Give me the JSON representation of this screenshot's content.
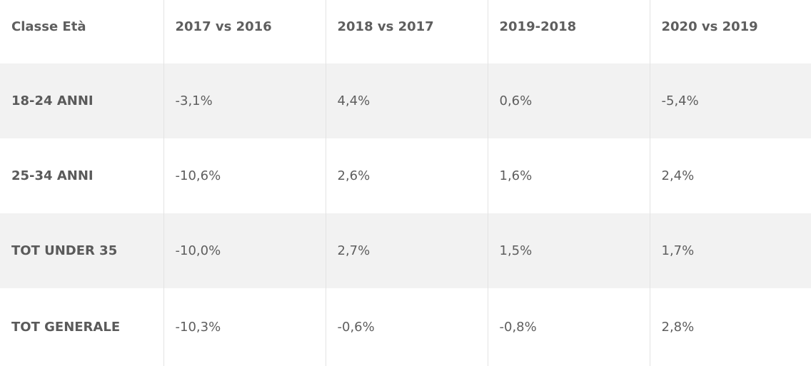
{
  "table": {
    "headers": [
      "Classe Età",
      "2017 vs 2016",
      "2018 vs 2017",
      "2019-2018",
      "2020 vs 2019"
    ],
    "rows": [
      {
        "label": "18-24 ANNI",
        "values": [
          "-3,1%",
          "4,4%",
          "0,6%",
          "-5,4%"
        ]
      },
      {
        "label": "25-34 ANNI",
        "values": [
          "-10,6%",
          "2,6%",
          "1,6%",
          "2,4%"
        ]
      },
      {
        "label": "TOT UNDER 35",
        "values": [
          "-10,0%",
          "2,7%",
          "1,5%",
          "1,7%"
        ]
      },
      {
        "label": "TOT GENERALE",
        "values": [
          "-10,3%",
          "-0,6%",
          "-0,8%",
          "2,8%"
        ]
      }
    ]
  },
  "colors": {
    "text": "#5b5b5b",
    "stripe": "#f2f2f2",
    "background": "#ffffff",
    "divider": "#e3e3e3"
  }
}
